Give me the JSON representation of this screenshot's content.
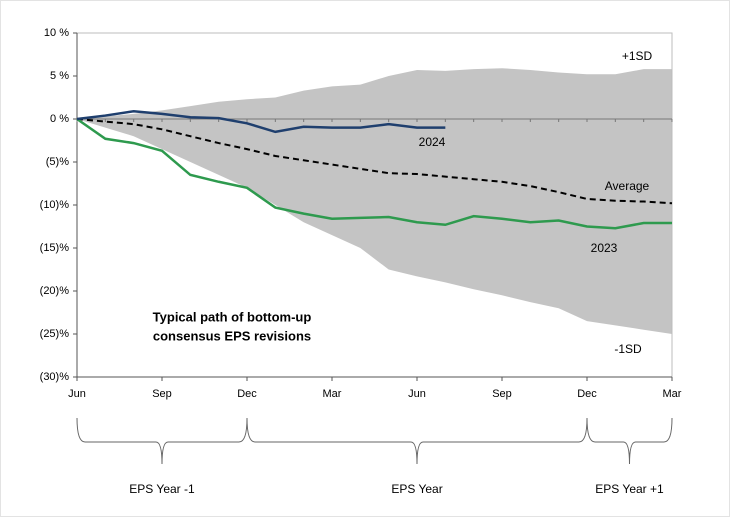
{
  "chart_data": {
    "type": "line",
    "x": [
      0,
      1,
      2,
      3,
      4,
      5,
      6,
      7,
      8,
      9,
      10,
      11,
      12,
      13,
      14,
      15,
      16,
      17,
      18,
      19,
      20,
      21
    ],
    "xlim": [
      0,
      21
    ],
    "xticks": [
      {
        "value": 0,
        "label": "Jun"
      },
      {
        "value": 3,
        "label": "Sep"
      },
      {
        "value": 6,
        "label": "Dec"
      },
      {
        "value": 9,
        "label": "Mar"
      },
      {
        "value": 12,
        "label": "Jun"
      },
      {
        "value": 15,
        "label": "Sep"
      },
      {
        "value": 18,
        "label": "Dec"
      },
      {
        "value": 21,
        "label": "Mar"
      }
    ],
    "ylim": [
      -30,
      10
    ],
    "yticks": [
      {
        "value": 10,
        "label": "10 %"
      },
      {
        "value": 5,
        "label": "5 %"
      },
      {
        "value": 0,
        "label": "0 %"
      },
      {
        "value": -5,
        "label": "(5)%"
      },
      {
        "value": -10,
        "label": "(10)%"
      },
      {
        "value": -15,
        "label": "(15)%"
      },
      {
        "value": -20,
        "label": "(20)%"
      },
      {
        "value": -25,
        "label": "(25)%"
      },
      {
        "value": -30,
        "label": "(30)%"
      }
    ],
    "band": {
      "color": "#c4c4c4",
      "upper_label": "+1SD",
      "lower_label": "-1SD",
      "upper": [
        0,
        0.3,
        0.6,
        1.0,
        1.5,
        2.0,
        2.3,
        2.5,
        3.3,
        3.8,
        4.0,
        5.0,
        5.7,
        5.6,
        5.8,
        5.9,
        5.7,
        5.4,
        5.2,
        5.2,
        5.8,
        5.8
      ],
      "lower": [
        0,
        -1,
        -2,
        -3.5,
        -5,
        -6.5,
        -8,
        -10,
        -12,
        -13.5,
        -15,
        -17.5,
        -18.3,
        -19,
        -19.8,
        -20.5,
        -21.3,
        -22,
        -23.5,
        -24,
        -24.5,
        -25
      ]
    },
    "series": [
      {
        "name": "Average",
        "color": "#000000",
        "dashed": true,
        "values": [
          0,
          -0.3,
          -0.6,
          -1.2,
          -2,
          -2.8,
          -3.5,
          -4.3,
          -4.8,
          -5.3,
          -5.8,
          -6.3,
          -6.4,
          -6.7,
          -7,
          -7.3,
          -7.8,
          -8.5,
          -9.3,
          -9.5,
          -9.6,
          -9.8
        ]
      },
      {
        "name": "2023",
        "color": "#2e9a4e",
        "values": [
          0,
          -2.3,
          -2.8,
          -3.7,
          -6.5,
          -7.3,
          -8,
          -10.3,
          -11,
          -11.6,
          -11.5,
          -11.4,
          -12,
          -12.3,
          -11.3,
          -11.6,
          -12,
          -11.8,
          -12.5,
          -12.7,
          -12.1,
          -12.1
        ]
      },
      {
        "name": "2024",
        "color": "#1f3f6e",
        "values": [
          0,
          0.4,
          0.9,
          0.6,
          0.2,
          0.1,
          -0.5,
          -1.5,
          -0.9,
          -1.0,
          -1.0,
          -0.6,
          -1.0,
          -1.0,
          null,
          null,
          null,
          null,
          null,
          null,
          null,
          null
        ]
      }
    ],
    "annotation": [
      "Typical path of bottom-up",
      "consensus EPS revisions"
    ],
    "periods": [
      {
        "label": "EPS Year -1",
        "start": 0,
        "end": 6
      },
      {
        "label": "EPS Year",
        "start": 6,
        "end": 18
      },
      {
        "label": "EPS Year +1",
        "start": 18,
        "end": 21
      }
    ]
  }
}
